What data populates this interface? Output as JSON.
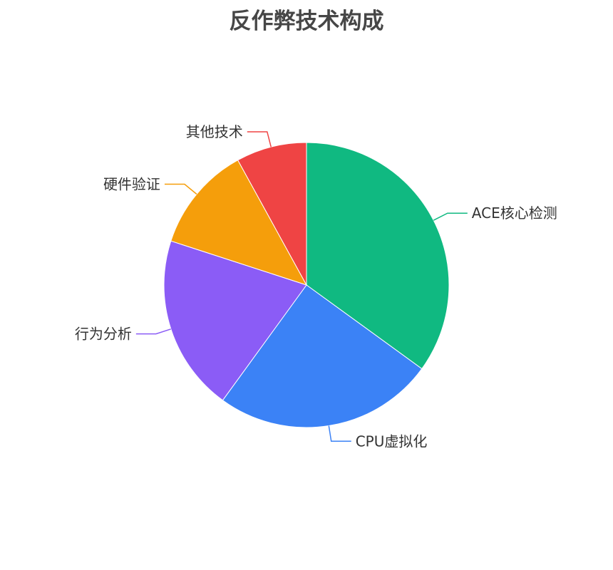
{
  "chart_data": {
    "type": "pie",
    "title": "反作弊技术构成",
    "start_angle": "top, clockwise",
    "slices": [
      {
        "label": "ACE核心检测",
        "value": 35,
        "color": "#10b981"
      },
      {
        "label": "CPU虚拟化",
        "value": 25,
        "color": "#3b82f6"
      },
      {
        "label": "行为分析",
        "value": 20,
        "color": "#8b5cf6"
      },
      {
        "label": "硬件验证",
        "value": 12,
        "color": "#f59e0b"
      },
      {
        "label": "其他技术",
        "value": 8,
        "color": "#ef4444"
      }
    ]
  }
}
